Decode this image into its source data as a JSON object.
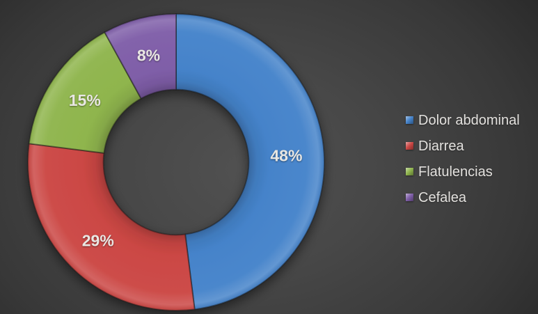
{
  "chart_data": {
    "type": "pie",
    "subtype": "doughnut",
    "title": "",
    "categories": [
      "Dolor abdominal",
      "Diarrea",
      "Flatulencias",
      "Cefalea"
    ],
    "values": [
      48,
      29,
      15,
      8
    ],
    "labels": [
      "48%",
      "29%",
      "15%",
      "8%"
    ],
    "colors": [
      "#4583CA",
      "#CB4744",
      "#8FB54D",
      "#7F5EA8"
    ],
    "legend_position": "right",
    "start_angle_deg": 0,
    "clockwise": true,
    "donut_hole_ratio": 0.49,
    "data_label_color": "#E9E7E3",
    "legend_text_color": "#E3E1DE",
    "background_center_color": "#515151",
    "background_edge_color": "#232323"
  }
}
